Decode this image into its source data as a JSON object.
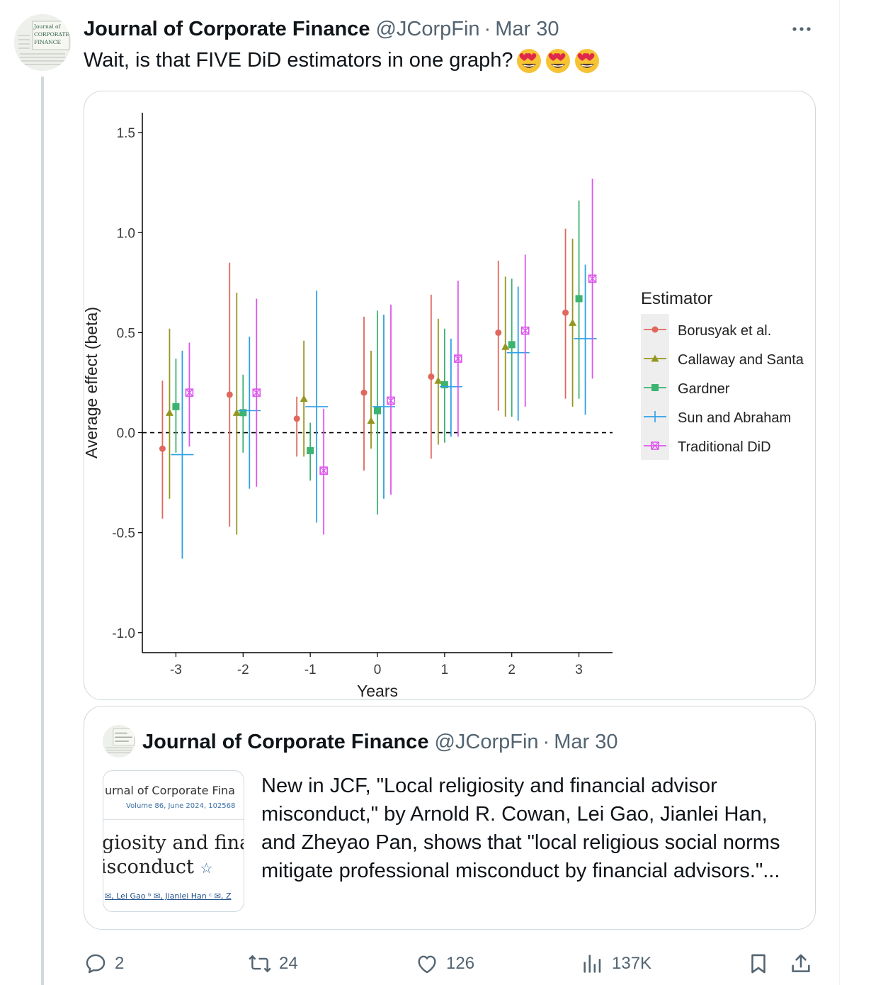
{
  "tweet": {
    "author_name": "Journal of Corporate Finance",
    "handle": "@JCorpFin",
    "separator": "·",
    "date": "Mar 30",
    "text": "Wait, is that FIVE DiD estimators in one graph?",
    "emoji": [
      "smiling-face-with-heart-eyes",
      "smiling-face-with-heart-eyes",
      "smiling-face-with-heart-eyes"
    ],
    "avatar_text": [
      "Journal of",
      "CORPORATE",
      "FINANCE"
    ]
  },
  "chart_data": {
    "type": "scatter",
    "title": "",
    "xlabel": "Years",
    "ylabel": "Average effect (beta)",
    "x_ticks": [
      "-3",
      "-2",
      "-1",
      "0",
      "1",
      "2",
      "3"
    ],
    "y_ticks": [
      "1.5",
      "1.0",
      "0.5",
      "0.0",
      "-0.5",
      "-1.0"
    ],
    "y_tick_values": [
      1.5,
      1.0,
      0.5,
      0.0,
      -0.5,
      -1.0
    ],
    "ylim": [
      -1.1,
      1.6
    ],
    "xlim": [
      -3.5,
      3.5
    ],
    "reference_line": 0.0,
    "grid": false,
    "legend_title": "Estimator",
    "legend_position": "right",
    "x": [
      -3,
      -2,
      -1,
      0,
      1,
      2,
      3
    ],
    "series": [
      {
        "name": "Borusyak et al.",
        "color": "#e0685c",
        "marker": "circle",
        "estimates": [
          -0.08,
          0.19,
          0.07,
          0.2,
          0.28,
          0.5,
          0.6
        ],
        "lower": [
          -0.43,
          -0.47,
          -0.12,
          -0.19,
          -0.13,
          0.11,
          0.17
        ],
        "upper": [
          0.26,
          0.85,
          0.18,
          0.58,
          0.69,
          0.86,
          1.02
        ]
      },
      {
        "name": "Callaway and Santa",
        "color": "#94971f",
        "marker": "triangle",
        "estimates": [
          0.1,
          0.1,
          0.17,
          0.06,
          0.26,
          0.43,
          0.55
        ],
        "lower": [
          -0.33,
          -0.51,
          -0.12,
          -0.08,
          -0.06,
          0.08,
          0.13
        ],
        "upper": [
          0.52,
          0.7,
          0.46,
          0.41,
          0.57,
          0.78,
          0.97
        ]
      },
      {
        "name": "Gardner",
        "color": "#3cb371",
        "marker": "square",
        "estimates": [
          0.13,
          0.1,
          -0.09,
          0.11,
          0.24,
          0.44,
          0.67
        ],
        "lower": [
          -0.1,
          -0.1,
          -0.24,
          -0.41,
          -0.05,
          0.08,
          0.17
        ],
        "upper": [
          0.37,
          0.29,
          0.05,
          0.61,
          0.52,
          0.77,
          1.16
        ]
      },
      {
        "name": "Sun and Abraham",
        "color": "#2e9fe6",
        "marker": "plus",
        "estimates": [
          -0.11,
          0.11,
          0.13,
          0.13,
          0.23,
          0.4,
          0.47
        ],
        "lower": [
          -0.63,
          -0.28,
          -0.45,
          -0.33,
          -0.02,
          0.06,
          0.09
        ],
        "upper": [
          0.41,
          0.48,
          0.71,
          0.59,
          0.47,
          0.73,
          0.84
        ]
      },
      {
        "name": "Traditional DiD",
        "color": "#dd55ee",
        "marker": "boxed-x",
        "estimates": [
          0.2,
          0.2,
          -0.19,
          0.16,
          0.37,
          0.51,
          0.77
        ],
        "lower": [
          -0.07,
          -0.27,
          -0.51,
          -0.31,
          -0.02,
          0.13,
          0.27
        ],
        "upper": [
          0.45,
          0.67,
          0.12,
          0.64,
          0.76,
          0.89,
          1.27
        ]
      }
    ]
  },
  "quote": {
    "author_name": "Journal of Corporate Finance",
    "handle": "@JCorpFin",
    "separator": "·",
    "date": "Mar 30",
    "text": "New in JCF, \"Local religiosity and financial advisor misconduct,\" by Arnold R. Cowan, Lei Gao, Jianlei Han, and Zheyao Pan, shows that \"local religious social norms mitigate professional misconduct by financial advisors.\"...",
    "thumbnail": {
      "journal": "urnal of Corporate Fina",
      "volume": "Volume 86, June 2024, 102568",
      "title_line1": "giosity and financ",
      "title_line2": "isconduct",
      "star": "☆",
      "authors": "✉, Lei Gao ᵇ ✉, Jianlei Han ᶜ ✉, Z"
    }
  },
  "actions": {
    "replies": "2",
    "reposts": "24",
    "likes": "126",
    "views": "137K"
  }
}
